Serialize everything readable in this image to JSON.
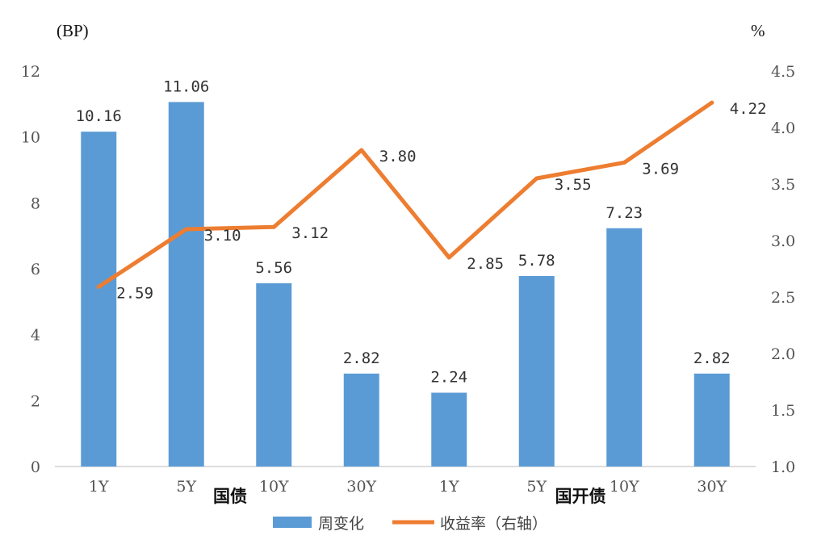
{
  "chart_data": {
    "type": "bar",
    "left_unit": "(BP)",
    "right_unit": "%",
    "categories": [
      "1Y",
      "5Y",
      "10Y",
      "30Y",
      "1Y",
      "5Y",
      "10Y",
      "30Y"
    ],
    "groups": [
      {
        "label": "国债",
        "from": 0,
        "to": 3
      },
      {
        "label": "国开债",
        "from": 4,
        "to": 7
      }
    ],
    "series": [
      {
        "name": "周变化",
        "type": "bar",
        "axis": "left",
        "color": "#5B9BD5",
        "values": [
          10.16,
          11.06,
          5.56,
          2.82,
          2.24,
          5.78,
          7.23,
          2.82
        ],
        "labels": [
          "10.16",
          "11.06",
          "5.56",
          "2.82",
          "2.24",
          "5.78",
          "7.23",
          "2.82"
        ]
      },
      {
        "name": "收益率（右轴）",
        "type": "line",
        "axis": "right",
        "color": "#ED7D31",
        "values": [
          2.59,
          3.1,
          3.12,
          3.8,
          2.85,
          3.55,
          3.69,
          4.22
        ],
        "labels": [
          "2.59",
          "3.10",
          "3.12",
          "3.80",
          "2.85",
          "3.55",
          "3.69",
          "4.22"
        ]
      }
    ],
    "left_axis": {
      "min": 0,
      "max": 12,
      "ticks": [
        "0",
        "2",
        "4",
        "6",
        "8",
        "10",
        "12"
      ]
    },
    "right_axis": {
      "min": 1.0,
      "max": 4.5,
      "ticks": [
        "1.0",
        "1.5",
        "2.0",
        "2.5",
        "3.0",
        "3.5",
        "4.0",
        "4.5"
      ]
    },
    "grid": false,
    "legend_position": "bottom"
  }
}
